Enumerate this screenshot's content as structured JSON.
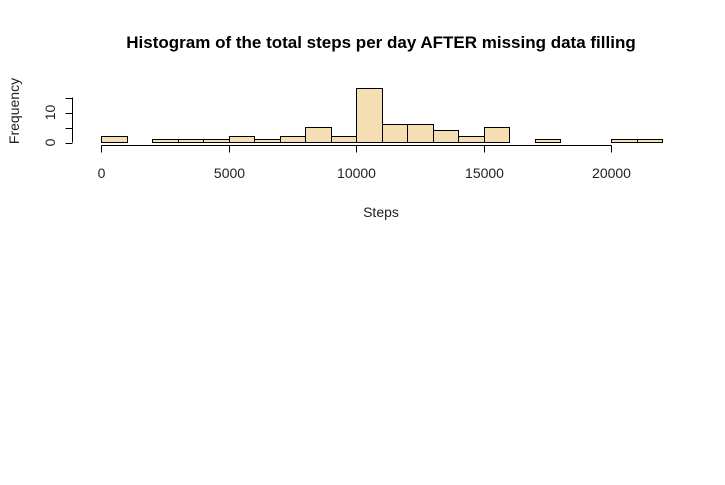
{
  "chart_data": {
    "type": "bar",
    "title": "Histogram of the total steps per day AFTER missing data filling",
    "xlabel": "Steps",
    "ylabel": "Frequency",
    "bin_width": 1000,
    "bin_starts": [
      0,
      1000,
      2000,
      3000,
      4000,
      5000,
      6000,
      7000,
      8000,
      9000,
      10000,
      11000,
      12000,
      13000,
      14000,
      15000,
      16000,
      17000,
      18000,
      19000,
      20000,
      21000
    ],
    "values": [
      2,
      0,
      1,
      1,
      1,
      2,
      1,
      2,
      5,
      2,
      18,
      6,
      6,
      4,
      2,
      5,
      0,
      1,
      0,
      0,
      1,
      1
    ],
    "xlim": [
      0,
      22000
    ],
    "ylim": [
      0,
      18
    ],
    "x_ticks": [
      0,
      5000,
      10000,
      15000,
      20000
    ],
    "x_tick_labels": [
      "0",
      "5000",
      "10000",
      "15000",
      "20000"
    ],
    "y_ticks": [
      0,
      5,
      10,
      15
    ],
    "y_tick_labels": [
      "0",
      "10"
    ],
    "y_labeled_ticks": [
      0,
      10
    ],
    "x_axis_end": 20000,
    "bar_color": "#F5DEB3",
    "border_color": "#000000",
    "grid": false,
    "legend": "none"
  }
}
